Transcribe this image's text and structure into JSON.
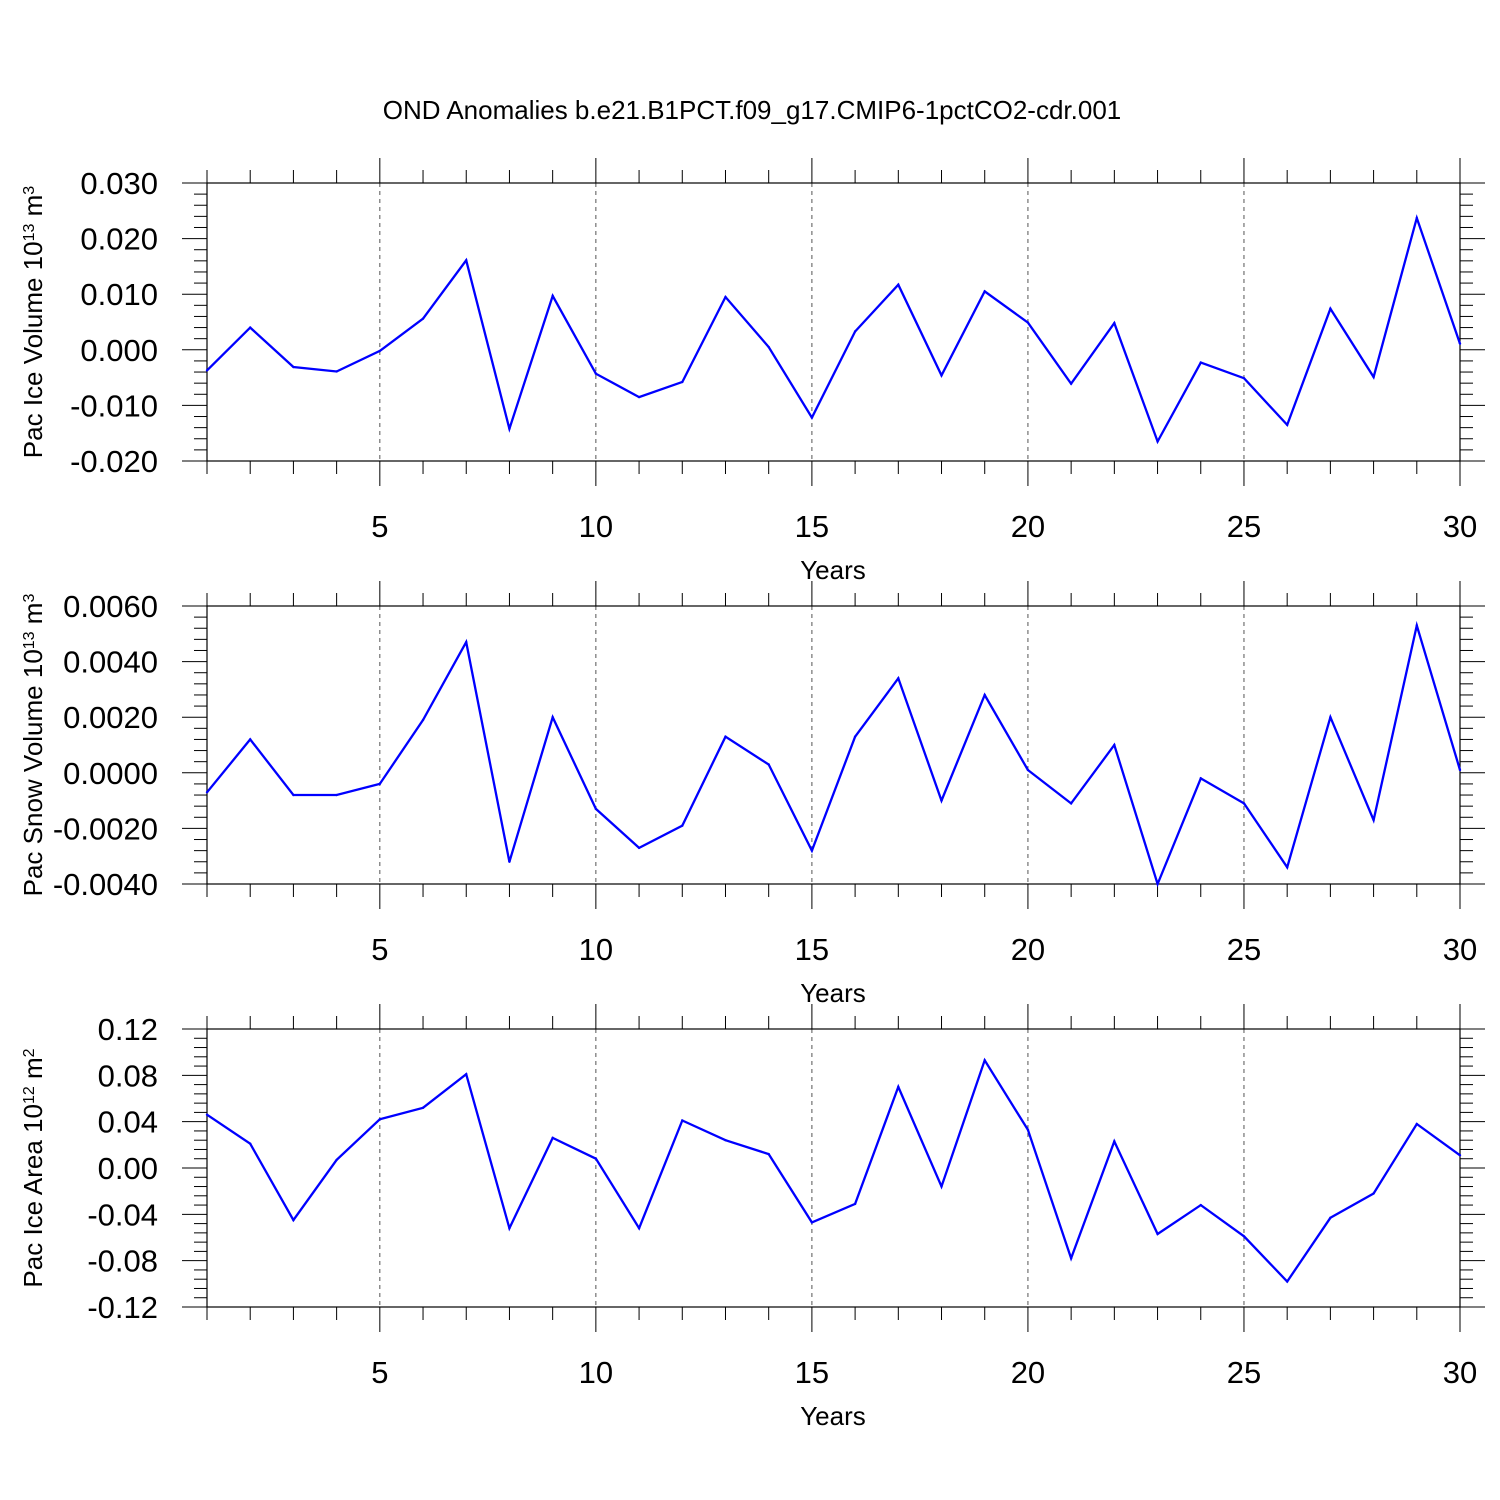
{
  "title": "OND Anomalies b.e21.B1PCT.f09_g17.CMIP6-1pctCO2-cdr.001",
  "colors": {
    "line": "#0000ff",
    "axis": "#000000",
    "grid": "#555555"
  },
  "chart_data": [
    {
      "type": "line",
      "ylabel": "Pac Ice Volume 10",
      "ylabel_exp": "13",
      "ylabel_unit": "m",
      "ylabel_unit_exp": "3",
      "xlabel": "Years",
      "xlim": [
        1,
        30
      ],
      "ylim": [
        -0.02,
        0.03
      ],
      "xticks": [
        5,
        10,
        15,
        20,
        25,
        30
      ],
      "yticks": [
        -0.02,
        -0.01,
        0.0,
        0.01,
        0.02,
        0.03
      ],
      "ytick_labels": [
        "-0.020",
        "-0.010",
        "0.000",
        "0.010",
        "0.020",
        "0.030"
      ],
      "x": [
        1,
        2,
        3,
        4,
        5,
        6,
        7,
        8,
        9,
        10,
        11,
        12,
        13,
        14,
        15,
        16,
        17,
        18,
        19,
        20,
        21,
        22,
        23,
        24,
        25,
        26,
        27,
        28,
        29,
        30
      ],
      "values": [
        -0.0037,
        0.004,
        -0.0031,
        -0.0039,
        -0.0002,
        0.0056,
        0.0161,
        -0.0142,
        0.0097,
        -0.0043,
        -0.0085,
        -0.0058,
        0.0095,
        0.0005,
        -0.0122,
        0.0033,
        0.0117,
        -0.0046,
        0.0105,
        0.0049,
        -0.0061,
        0.0048,
        -0.0165,
        -0.0023,
        -0.0051,
        -0.0135,
        0.0074,
        -0.0049,
        0.0237,
        0.0011
      ]
    },
    {
      "type": "line",
      "ylabel": "Pac Snow Volume 10",
      "ylabel_exp": "13",
      "ylabel_unit": "m",
      "ylabel_unit_exp": "3",
      "xlabel": "Years",
      "xlim": [
        1,
        30
      ],
      "ylim": [
        -0.004,
        0.006
      ],
      "xticks": [
        5,
        10,
        15,
        20,
        25,
        30
      ],
      "yticks": [
        -0.004,
        -0.002,
        0.0,
        0.002,
        0.004,
        0.006
      ],
      "ytick_labels": [
        "-0.0040",
        "-0.0020",
        "0.0000",
        "0.0020",
        "0.0040",
        "0.0060"
      ],
      "x": [
        1,
        2,
        3,
        4,
        5,
        6,
        7,
        8,
        9,
        10,
        11,
        12,
        13,
        14,
        15,
        16,
        17,
        18,
        19,
        20,
        21,
        22,
        23,
        24,
        25,
        26,
        27,
        28,
        29,
        30
      ],
      "values": [
        -0.0007,
        0.0012,
        -0.0008,
        -0.0008,
        -0.0004,
        0.0019,
        0.0047,
        -0.0032,
        0.002,
        -0.0013,
        -0.0027,
        -0.0019,
        0.0013,
        0.0003,
        -0.0028,
        0.0013,
        0.0034,
        -0.001,
        0.0028,
        0.0001,
        -0.0011,
        0.001,
        -0.004,
        -0.0002,
        -0.0011,
        -0.0034,
        0.002,
        -0.0017,
        0.0053,
        0.0001
      ]
    },
    {
      "type": "line",
      "ylabel": "Pac Ice Area 10",
      "ylabel_exp": "12",
      "ylabel_unit": "m",
      "ylabel_unit_exp": "2",
      "xlabel": "Years",
      "xlim": [
        1,
        30
      ],
      "ylim": [
        -0.12,
        0.12
      ],
      "xticks": [
        5,
        10,
        15,
        20,
        25,
        30
      ],
      "yticks": [
        -0.12,
        -0.08,
        -0.04,
        0.0,
        0.04,
        0.08,
        0.12
      ],
      "ytick_labels": [
        "-0.12",
        "-0.08",
        "-0.04",
        "0.00",
        "0.04",
        "0.08",
        "0.12"
      ],
      "x": [
        1,
        2,
        3,
        4,
        5,
        6,
        7,
        8,
        9,
        10,
        11,
        12,
        13,
        14,
        15,
        16,
        17,
        18,
        19,
        20,
        21,
        22,
        23,
        24,
        25,
        26,
        27,
        28,
        29,
        30
      ],
      "values": [
        0.046,
        0.021,
        -0.045,
        0.007,
        0.042,
        0.052,
        0.081,
        -0.052,
        0.026,
        0.008,
        -0.052,
        0.041,
        0.024,
        0.012,
        -0.047,
        -0.031,
        0.07,
        -0.016,
        0.093,
        0.033,
        -0.078,
        0.023,
        -0.057,
        -0.032,
        -0.059,
        -0.098,
        -0.043,
        -0.022,
        0.038,
        0.011
      ]
    }
  ]
}
